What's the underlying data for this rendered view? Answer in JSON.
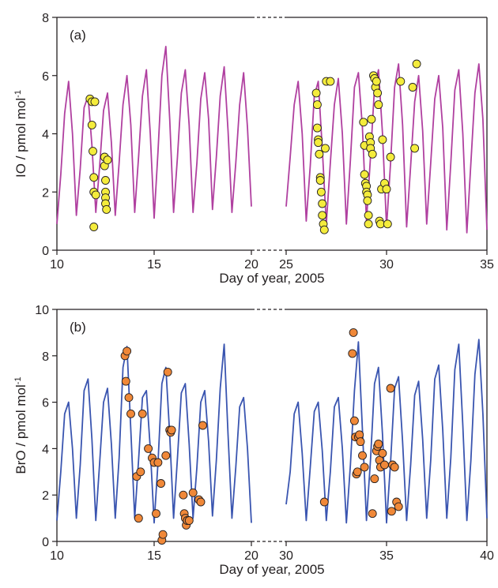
{
  "chart_data": [
    {
      "type": "line",
      "panel_label": "(a)",
      "xlabel": "Day of year, 2005",
      "ylabel_main": "IO / pmol mol",
      "ylabel_sup": "-1",
      "ylim": [
        0,
        8
      ],
      "yticks": [
        0,
        2,
        4,
        6,
        8
      ],
      "segments": [
        {
          "xlim": [
            10,
            20
          ],
          "xticks": [
            10,
            15,
            20
          ]
        },
        {
          "xlim": [
            25,
            35
          ],
          "xticks": [
            25,
            30,
            35
          ]
        }
      ],
      "line_color": "#b040a0",
      "marker_color": "#f4ec3c",
      "series": [
        {
          "style": "line",
          "x": [
            10.0,
            10.2,
            10.4,
            10.6,
            10.8,
            11.0,
            11.2,
            11.4,
            11.6,
            11.8,
            12.0,
            12.2,
            12.4,
            12.6,
            12.8,
            13.0,
            13.2,
            13.4,
            13.6,
            13.8,
            14.0,
            14.2,
            14.4,
            14.6,
            14.8,
            15.0,
            15.2,
            15.4,
            15.6,
            15.8,
            16.0,
            16.2,
            16.4,
            16.6,
            16.8,
            17.0,
            17.2,
            17.4,
            17.6,
            17.8,
            18.0,
            18.2,
            18.4,
            18.6,
            18.8,
            19.0,
            19.2,
            19.4,
            19.6,
            19.8,
            20.0,
            25.0,
            25.2,
            25.4,
            25.6,
            25.8,
            26.0,
            26.2,
            26.4,
            26.6,
            26.8,
            27.0,
            27.2,
            27.4,
            27.6,
            27.8,
            28.0,
            28.2,
            28.4,
            28.6,
            28.8,
            29.0,
            29.2,
            29.4,
            29.6,
            29.8,
            30.0,
            30.2,
            30.4,
            30.6,
            30.8,
            31.0,
            31.2,
            31.4,
            31.6,
            31.8,
            32.0,
            32.2,
            32.4,
            32.6,
            32.8,
            33.0,
            33.2,
            33.4,
            33.6,
            33.8,
            34.0,
            34.2,
            34.4,
            34.6,
            34.8,
            35.0
          ],
          "y": [
            0.9,
            2.6,
            4.7,
            5.8,
            4.0,
            1.2,
            2.8,
            4.9,
            5.3,
            3.6,
            1.3,
            2.9,
            4.8,
            5.4,
            3.7,
            1.2,
            3.0,
            5.0,
            6.0,
            4.3,
            1.3,
            3.2,
            5.3,
            6.2,
            4.0,
            1.1,
            3.4,
            6.0,
            7.0,
            4.5,
            1.3,
            3.2,
            5.4,
            6.2,
            4.3,
            1.3,
            3.0,
            5.2,
            6.1,
            4.5,
            1.4,
            3.2,
            5.3,
            6.3,
            4.1,
            1.3,
            3.0,
            5.0,
            6.1,
            4.2,
            1.5,
            1.5,
            3.2,
            5.0,
            5.8,
            4.0,
            1.0,
            2.9,
            5.3,
            5.8,
            3.5,
            0.9,
            3.0,
            5.0,
            5.9,
            4.0,
            0.9,
            3.1,
            5.6,
            6.1,
            4.2,
            1.0,
            3.2,
            5.6,
            6.2,
            4.0,
            0.8,
            3.0,
            5.6,
            6.4,
            4.3,
            0.8,
            2.9,
            5.1,
            6.0,
            4.1,
            0.9,
            3.0,
            5.2,
            6.0,
            4.2,
            0.7,
            3.0,
            5.5,
            6.2,
            4.0,
            0.6,
            3.0,
            5.4,
            6.4,
            4.5,
            0.7
          ]
        },
        {
          "style": "scatter",
          "x": [
            11.7,
            11.8,
            11.8,
            11.85,
            11.9,
            11.9,
            11.9,
            11.95,
            12.0,
            12.45,
            12.45,
            12.5,
            12.5,
            12.5,
            12.5,
            12.55,
            12.6,
            26.5,
            26.55,
            26.55,
            26.6,
            26.6,
            26.65,
            26.7,
            26.7,
            26.75,
            26.8,
            26.8,
            26.85,
            26.9,
            26.95,
            27.0,
            27.2,
            28.85,
            28.9,
            28.9,
            28.95,
            29.0,
            29.0,
            29.05,
            29.05,
            29.1,
            29.1,
            29.15,
            29.2,
            29.2,
            29.25,
            29.3,
            29.35,
            29.4,
            29.45,
            29.5,
            29.55,
            29.6,
            29.65,
            29.7,
            29.75,
            29.8,
            29.9,
            30.0,
            30.05,
            30.2,
            30.7,
            31.3,
            31.4,
            31.5
          ],
          "y": [
            5.2,
            5.1,
            4.3,
            3.4,
            2.5,
            2.0,
            0.8,
            5.1,
            1.9,
            3.2,
            2.9,
            2.4,
            2.0,
            1.8,
            1.6,
            1.4,
            3.1,
            5.4,
            5.0,
            4.2,
            3.8,
            3.7,
            3.3,
            2.5,
            2.4,
            2.0,
            1.6,
            1.2,
            0.9,
            0.7,
            3.5,
            5.8,
            5.8,
            4.4,
            3.6,
            2.6,
            2.3,
            2.2,
            2.0,
            1.9,
            1.7,
            1.2,
            0.9,
            3.9,
            3.7,
            3.5,
            4.5,
            3.3,
            6.0,
            5.9,
            5.6,
            5.8,
            5.4,
            5.0,
            1.0,
            0.9,
            2.1,
            3.8,
            2.3,
            2.1,
            0.9,
            3.2,
            5.8,
            5.6,
            3.5,
            6.4
          ]
        }
      ]
    },
    {
      "type": "line",
      "panel_label": "(b)",
      "xlabel": "Day of year, 2005",
      "ylabel_main": "BrO / pmol mol",
      "ylabel_sup": "-1",
      "ylim": [
        0,
        10
      ],
      "yticks": [
        0,
        2,
        4,
        6,
        8,
        10
      ],
      "segments": [
        {
          "xlim": [
            10,
            20
          ],
          "xticks": [
            10,
            15,
            20
          ]
        },
        {
          "xlim": [
            30,
            40
          ],
          "xticks": [
            30,
            35,
            40
          ]
        }
      ],
      "line_color": "#3a55b0",
      "marker_color": "#f08838",
      "series": [
        {
          "style": "line",
          "x": [
            10.0,
            10.2,
            10.4,
            10.6,
            10.8,
            11.0,
            11.2,
            11.4,
            11.6,
            11.8,
            12.0,
            12.2,
            12.4,
            12.6,
            12.8,
            13.0,
            13.2,
            13.4,
            13.6,
            13.8,
            14.0,
            14.2,
            14.4,
            14.6,
            14.8,
            15.0,
            15.2,
            15.4,
            15.6,
            15.8,
            16.0,
            16.2,
            16.4,
            16.6,
            16.8,
            17.0,
            17.2,
            17.4,
            17.6,
            17.8,
            18.0,
            18.2,
            18.4,
            18.6,
            18.8,
            19.0,
            19.2,
            19.4,
            19.6,
            19.8,
            20.0,
            30.0,
            30.2,
            30.4,
            30.6,
            30.8,
            31.0,
            31.2,
            31.4,
            31.6,
            31.8,
            32.0,
            32.2,
            32.4,
            32.6,
            32.8,
            33.0,
            33.2,
            33.4,
            33.6,
            33.8,
            34.0,
            34.2,
            34.4,
            34.6,
            34.8,
            35.0,
            35.2,
            35.4,
            35.6,
            35.8,
            36.0,
            36.2,
            36.4,
            36.6,
            36.8,
            37.0,
            37.2,
            37.4,
            37.6,
            37.8,
            38.0,
            38.2,
            38.4,
            38.6,
            38.8,
            39.0,
            39.2,
            39.4,
            39.6,
            39.8,
            40.0
          ],
          "y": [
            0.9,
            3.0,
            5.5,
            6.0,
            4.0,
            1.0,
            3.3,
            6.5,
            7.0,
            4.4,
            0.9,
            3.4,
            6.0,
            6.6,
            4.2,
            1.0,
            3.6,
            7.5,
            8.4,
            4.8,
            1.0,
            3.5,
            6.2,
            6.5,
            4.0,
            0.8,
            3.4,
            6.8,
            7.5,
            4.6,
            1.0,
            3.6,
            6.4,
            6.8,
            4.2,
            1.0,
            3.2,
            6.0,
            6.5,
            4.3,
            1.1,
            3.5,
            6.6,
            8.5,
            4.6,
            1.0,
            3.2,
            5.8,
            6.2,
            4.0,
            0.8,
            1.6,
            3.0,
            5.5,
            6.0,
            3.8,
            0.9,
            3.2,
            5.6,
            6.0,
            3.9,
            0.9,
            3.0,
            5.8,
            6.2,
            4.0,
            0.8,
            3.3,
            6.5,
            8.6,
            4.8,
            0.9,
            3.5,
            6.8,
            7.5,
            4.6,
            0.8,
            3.4,
            6.6,
            7.1,
            4.3,
            0.9,
            3.3,
            6.3,
            6.9,
            4.4,
            1.0,
            3.5,
            7.0,
            7.6,
            4.8,
            1.0,
            3.6,
            7.4,
            8.5,
            5.0,
            0.9,
            3.5,
            7.2,
            8.7,
            5.5,
            1.0
          ]
        },
        {
          "style": "scatter",
          "x": [
            13.5,
            13.55,
            13.6,
            13.7,
            13.8,
            14.1,
            14.2,
            14.3,
            14.4,
            14.7,
            14.9,
            15.0,
            15.1,
            15.2,
            15.35,
            15.4,
            15.45,
            15.6,
            15.7,
            15.8,
            15.85,
            15.9,
            16.5,
            16.55,
            16.6,
            16.65,
            16.7,
            16.8,
            17.0,
            17.3,
            17.4,
            17.5,
            31.9,
            33.3,
            33.35,
            33.4,
            33.45,
            33.5,
            33.55,
            33.6,
            33.65,
            33.7,
            33.8,
            33.9,
            34.3,
            34.4,
            34.5,
            34.55,
            34.6,
            34.65,
            34.7,
            34.8,
            34.9,
            35.2,
            35.25,
            35.3,
            35.4,
            35.5,
            35.6
          ],
          "y": [
            8.0,
            6.9,
            8.2,
            6.2,
            5.5,
            2.8,
            1.0,
            3.0,
            5.5,
            4.0,
            3.6,
            3.4,
            1.2,
            3.4,
            2.5,
            0.05,
            0.3,
            3.7,
            7.3,
            4.8,
            4.7,
            4.8,
            2.0,
            1.2,
            1.0,
            0.7,
            0.9,
            0.9,
            2.1,
            1.8,
            1.7,
            5.0,
            1.7,
            8.1,
            9.0,
            5.2,
            4.5,
            2.9,
            3.0,
            4.5,
            4.6,
            4.3,
            3.7,
            3.2,
            1.2,
            2.7,
            3.9,
            4.1,
            4.2,
            3.5,
            3.2,
            3.8,
            3.3,
            6.6,
            1.3,
            3.3,
            3.2,
            1.7,
            1.5
          ]
        }
      ]
    }
  ]
}
